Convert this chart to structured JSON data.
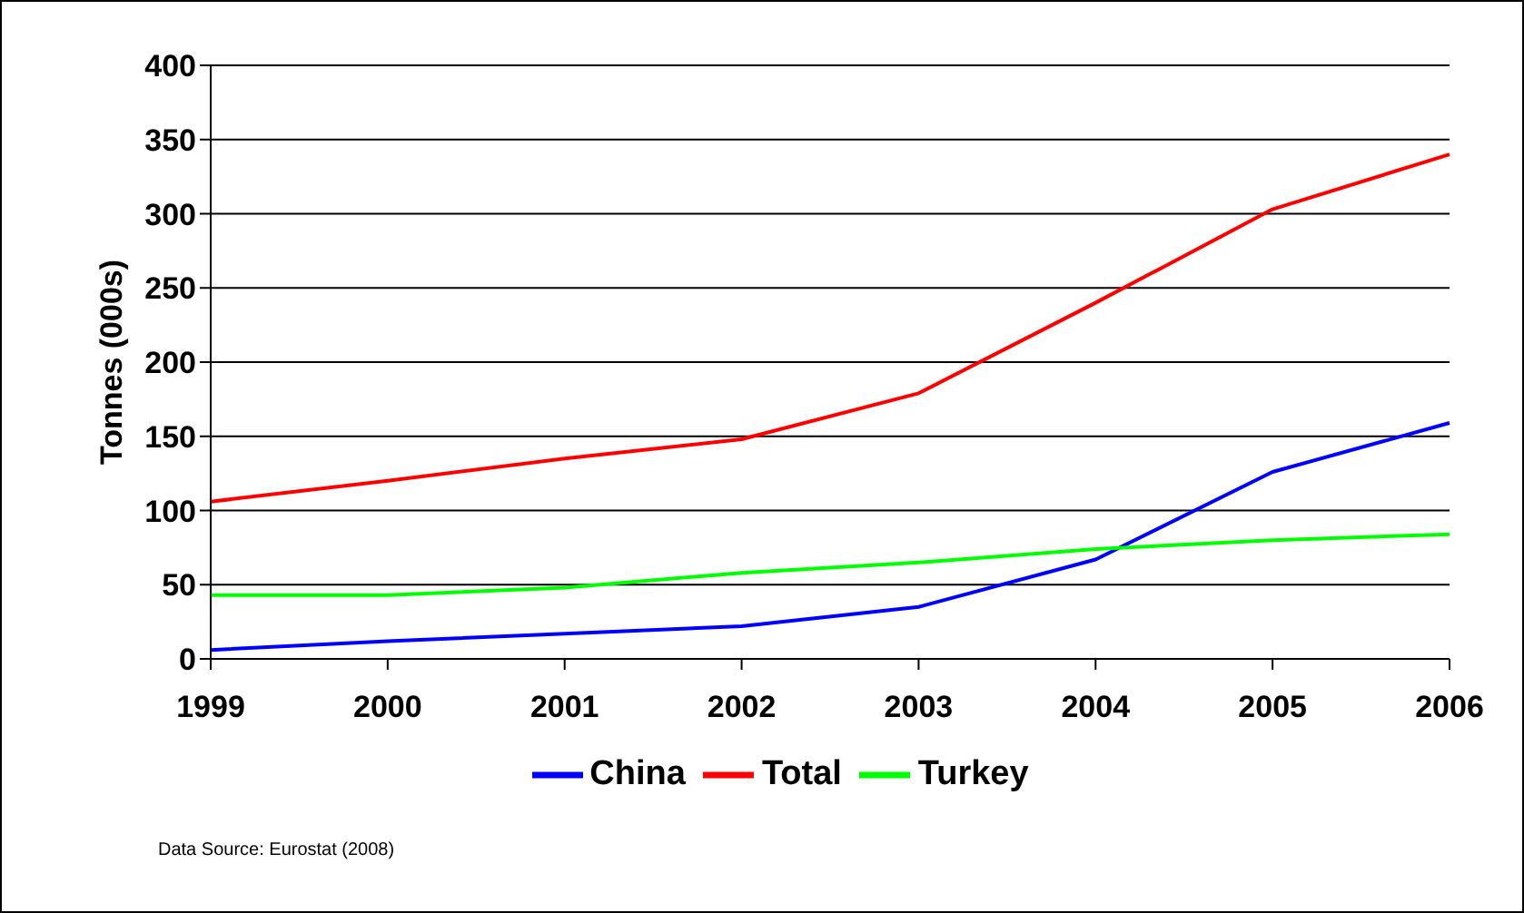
{
  "chart_data": {
    "type": "line",
    "ylabel": "Tonnes (000s)",
    "categories": [
      "1999",
      "2000",
      "2001",
      "2002",
      "2003",
      "2004",
      "2005",
      "2006"
    ],
    "series": [
      {
        "name": "Total",
        "color": "#ff0000",
        "values": [
          106,
          120,
          135,
          148,
          179,
          240,
          303,
          340
        ]
      },
      {
        "name": "China",
        "color": "#0000ff",
        "values": [
          6,
          12,
          17,
          22,
          35,
          67,
          126,
          159
        ]
      },
      {
        "name": "Turkey",
        "color": "#00ff00",
        "values": [
          43,
          43,
          48,
          58,
          65,
          74,
          80,
          84
        ]
      }
    ],
    "ylim": [
      0,
      400
    ],
    "yticks": [
      0,
      50,
      100,
      150,
      200,
      250,
      300,
      350,
      400
    ],
    "grid": "y",
    "legend": "bottom",
    "marker": "none",
    "line_style": "solid",
    "annotations": [
      "Data Source: Eurostat (2008)"
    ]
  }
}
